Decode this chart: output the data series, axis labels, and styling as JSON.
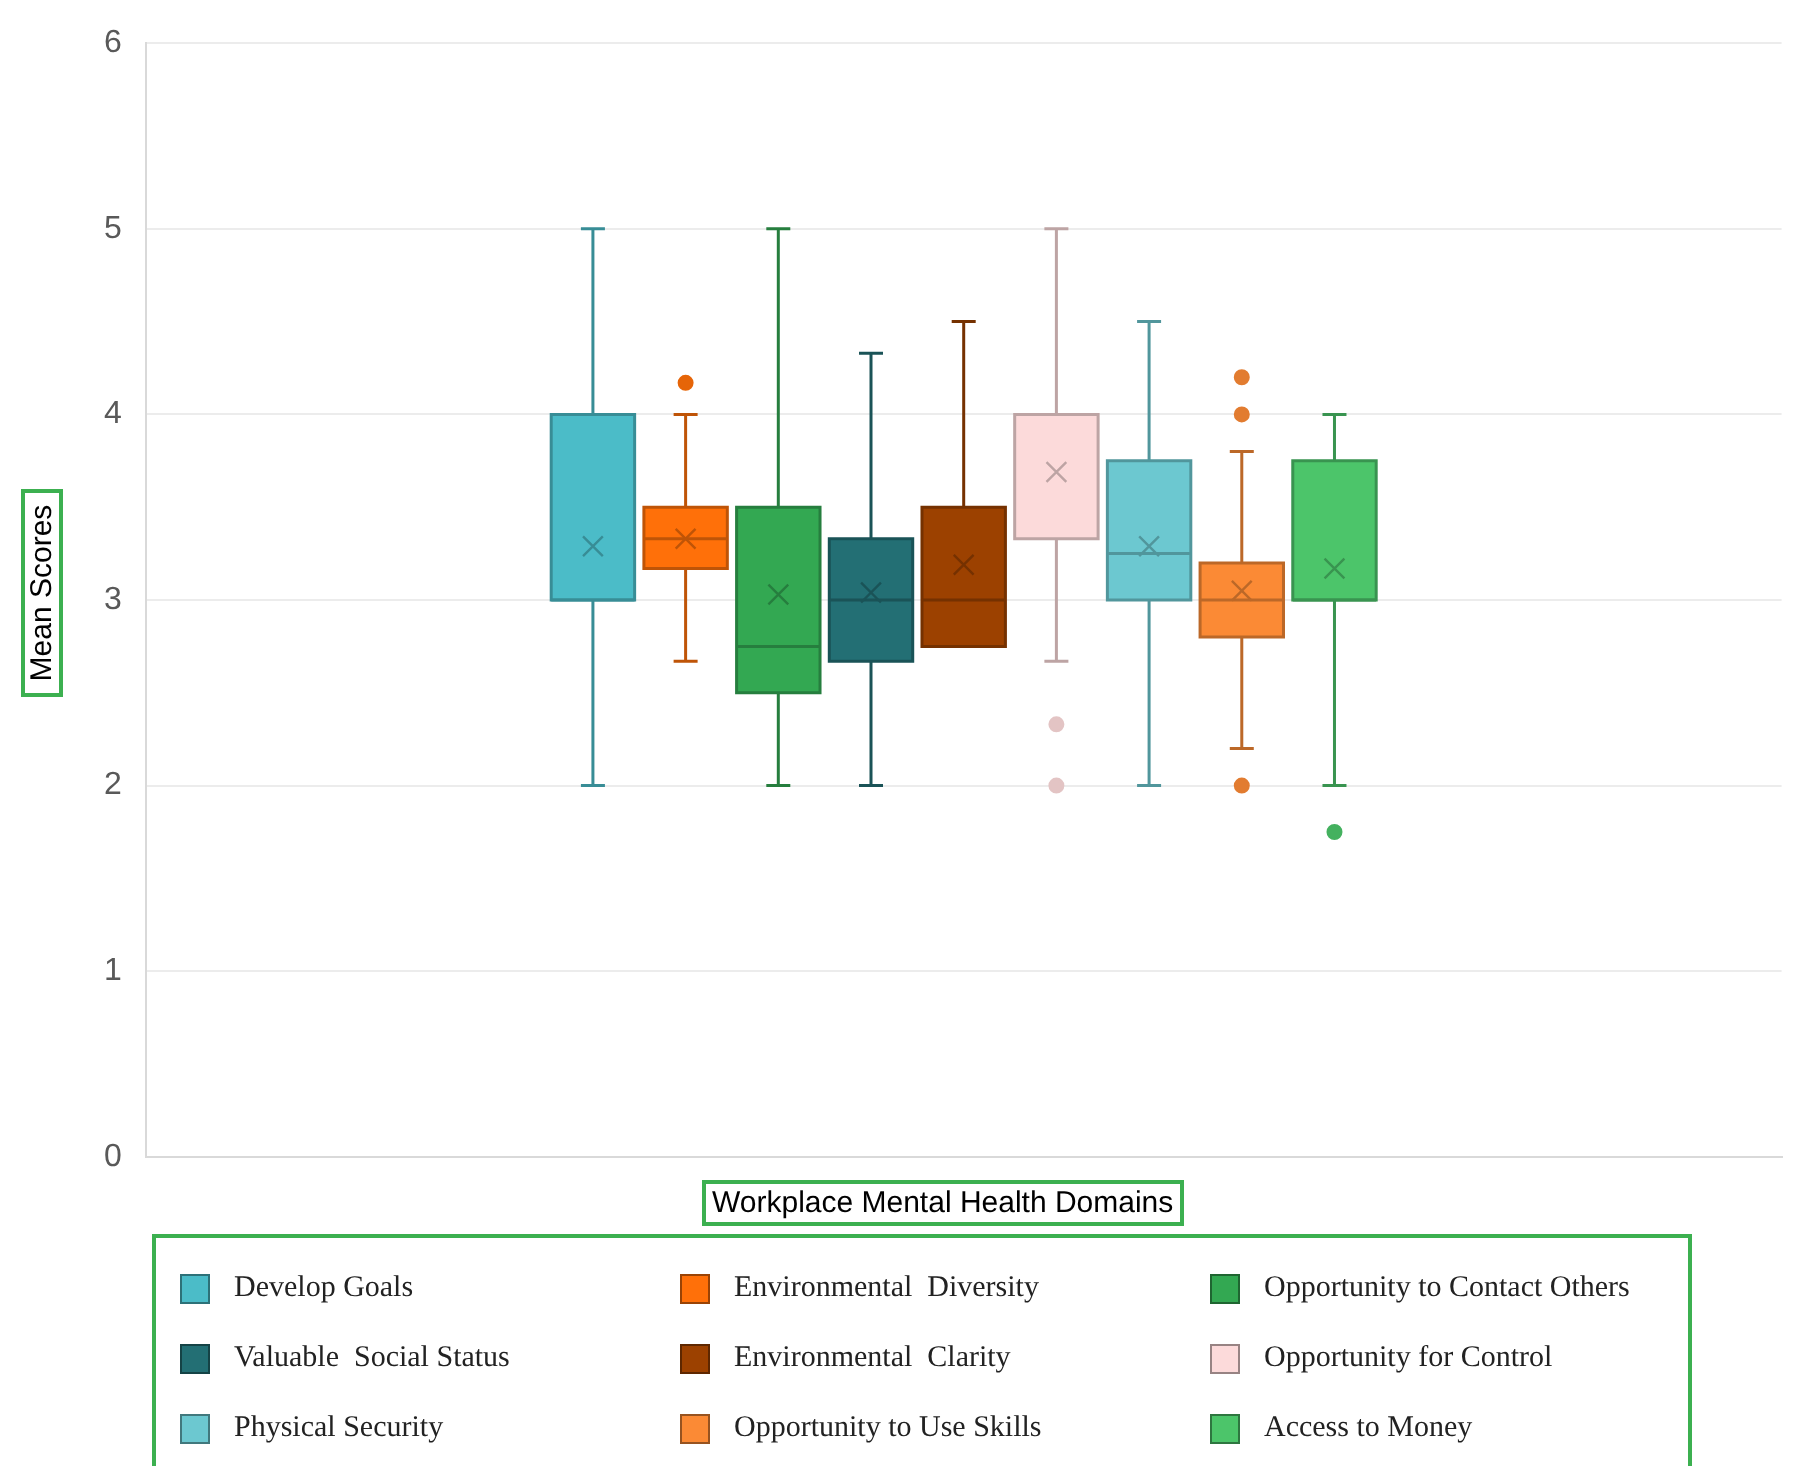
{
  "chart_data": {
    "type": "box",
    "xlabel": "Workplace Mental Health Domains",
    "ylabel": "Mean Scores",
    "categories": [
      null
    ],
    "ylim": [
      0,
      6
    ],
    "yticks": [
      0,
      1,
      2,
      3,
      4,
      5,
      6
    ],
    "grid": "y",
    "legend": "bottom",
    "marker": "cross",
    "series": [
      {
        "name": "Develop Goals",
        "color": "#4bbcc8",
        "boxes": [
          {
            "low": 2,
            "q1": 3,
            "median": 3,
            "q3": 4,
            "high": 5,
            "mean": 3.29
          }
        ]
      },
      {
        "name": "Environmental  Diversity",
        "color": "#ff7009",
        "boxes": [
          {
            "low": 2.67,
            "q1": 3.17,
            "median": 3.33,
            "q3": 3.5,
            "high": 4,
            "mean": 3.33,
            "outliers": [
              4.17
            ]
          }
        ]
      },
      {
        "name": "Opportunity to Contact Others",
        "color": "#33a852",
        "boxes": [
          {
            "low": 2,
            "q1": 2.5,
            "median": 2.75,
            "q3": 3.5,
            "high": 5,
            "mean": 3.03
          }
        ]
      },
      {
        "name": "Valuable  Social Status",
        "color": "#236f74",
        "boxes": [
          {
            "low": 2,
            "q1": 2.67,
            "median": 3,
            "q3": 3.33,
            "high": 4.33,
            "mean": 3.04
          }
        ]
      },
      {
        "name": "Environmental  Clarity",
        "color": "#9c4100",
        "boxes": [
          {
            "low": 2.75,
            "q1": 2.75,
            "median": 3,
            "q3": 3.5,
            "high": 4.5,
            "mean": 3.19
          }
        ]
      },
      {
        "name": "Opportunity for Control",
        "color": "#fcdada",
        "boxes": [
          {
            "low": 2.67,
            "q1": 3.33,
            "median": 4,
            "q3": 4,
            "high": 5,
            "mean": 3.69,
            "outliers": [
              2.33,
              2
            ]
          }
        ]
      },
      {
        "name": "Physical Security",
        "color": "#6cc8d0",
        "boxes": [
          {
            "low": 2,
            "q1": 3,
            "median": 3.25,
            "q3": 3.75,
            "high": 4.5,
            "mean": 3.29
          }
        ]
      },
      {
        "name": "Opportunity to Use Skills",
        "color": "#fb8a35",
        "boxes": [
          {
            "low": 2.2,
            "q1": 2.8,
            "median": 3,
            "q3": 3.2,
            "high": 3.8,
            "mean": 3.05,
            "outliers": [
              4.2,
              4,
              2
            ]
          }
        ]
      },
      {
        "name": "Access to Money",
        "color": "#4cc56a",
        "boxes": [
          {
            "low": 2,
            "q1": 3,
            "median": 3,
            "q3": 3.75,
            "high": 4,
            "mean": 3.17,
            "outliers": [
              1.75
            ]
          }
        ]
      }
    ]
  }
}
